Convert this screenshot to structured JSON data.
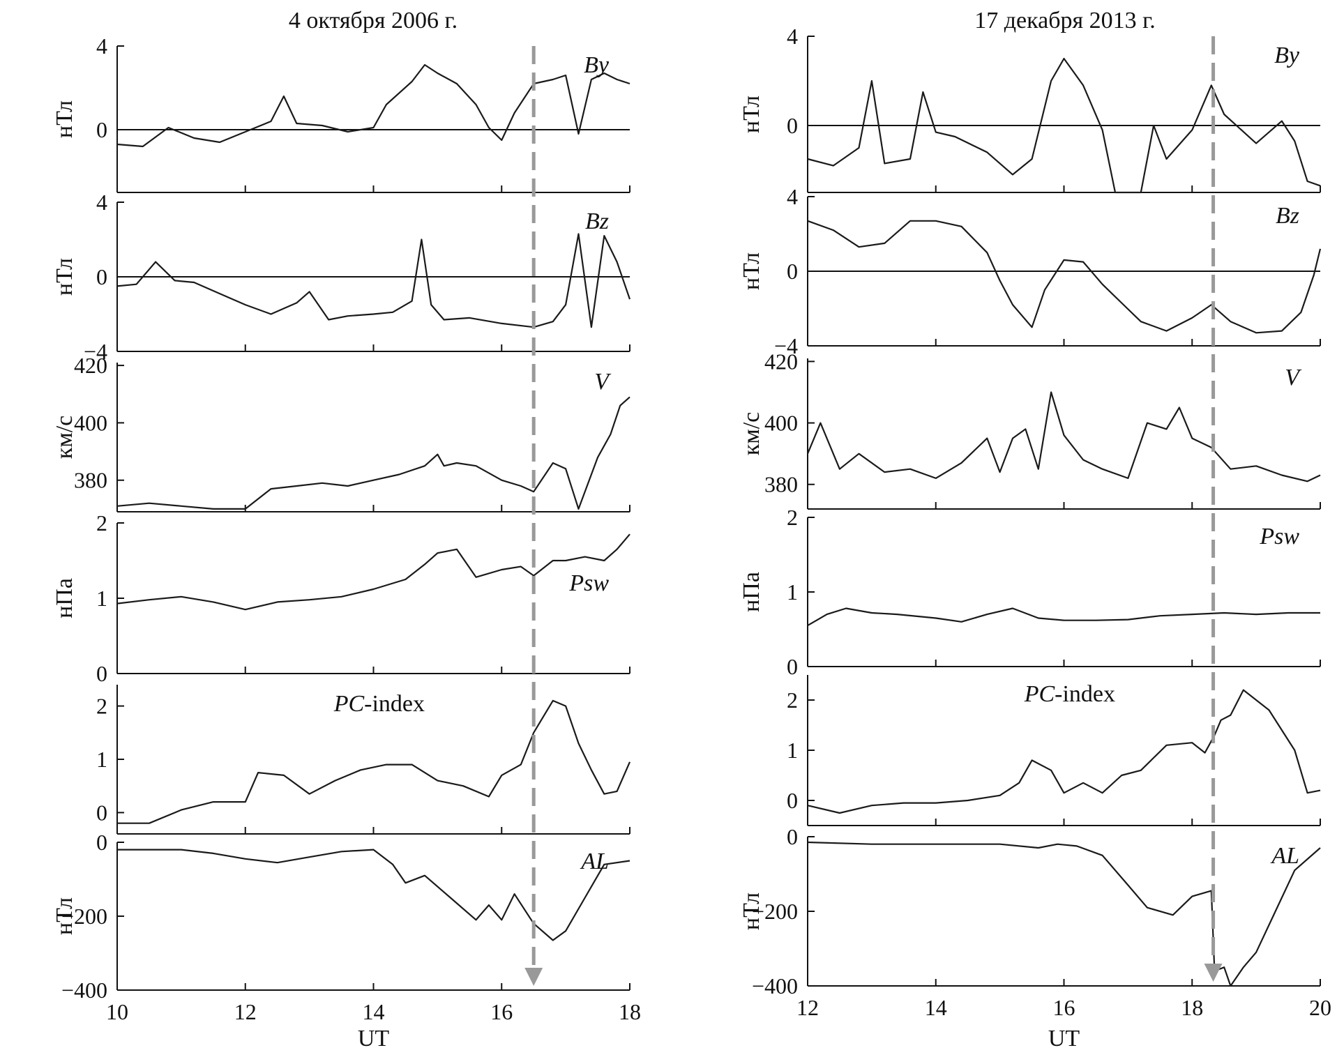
{
  "chart_data": [
    {
      "type": "line",
      "title": "4 октября 2006 г.",
      "xlabel": "UT",
      "xlim": [
        10,
        18
      ],
      "xticks": [
        10,
        12,
        14,
        16,
        18
      ],
      "xtick_labels": [
        "10",
        "12",
        "14",
        "16",
        "18"
      ],
      "event_time": 16.5,
      "event_color": "#999999",
      "panels": [
        {
          "name": "By",
          "label_main": "By",
          "label_suffix": "",
          "ylabel": "нТл",
          "ylim": [
            -3,
            4
          ],
          "yticks": [
            0,
            4
          ],
          "ytick_labels": [
            "0",
            "4"
          ],
          "zero_line": true,
          "label_pos": "top-right",
          "x": [
            10,
            10.4,
            10.8,
            11.2,
            11.6,
            12,
            12.4,
            12.6,
            12.8,
            13.2,
            13.6,
            14,
            14.2,
            14.6,
            14.8,
            15,
            15.3,
            15.6,
            15.8,
            16,
            16.2,
            16.5,
            16.8,
            17,
            17.1,
            17.2,
            17.4,
            17.6,
            17.8,
            18
          ],
          "y": [
            -0.7,
            -0.8,
            0.1,
            -0.4,
            -0.6,
            -0.1,
            0.4,
            1.6,
            0.3,
            0.2,
            -0.1,
            0.1,
            1.2,
            2.3,
            3.1,
            2.7,
            2.2,
            1.2,
            0.1,
            -0.5,
            0.8,
            2.2,
            2.4,
            2.6,
            1.2,
            -0.2,
            2.4,
            2.7,
            2.4,
            2.2
          ]
        },
        {
          "name": "Bz",
          "label_main": "Bz",
          "label_suffix": "",
          "ylabel": "нТл",
          "ylim": [
            -4,
            4
          ],
          "yticks": [
            -4,
            0,
            4
          ],
          "ytick_labels": [
            "−4",
            "0",
            "4"
          ],
          "zero_line": true,
          "label_pos": "top-right",
          "x": [
            10,
            10.3,
            10.6,
            10.9,
            11.2,
            11.6,
            12,
            12.4,
            12.8,
            13,
            13.3,
            13.6,
            14,
            14.3,
            14.6,
            14.75,
            14.9,
            15.1,
            15.5,
            16,
            16.5,
            16.8,
            17,
            17.2,
            17.4,
            17.6,
            17.8,
            18
          ],
          "y": [
            -0.5,
            -0.4,
            0.8,
            -0.2,
            -0.3,
            -0.9,
            -1.5,
            -2,
            -1.4,
            -0.8,
            -2.3,
            -2.1,
            -2,
            -1.9,
            -1.3,
            2,
            -1.5,
            -2.3,
            -2.2,
            -2.5,
            -2.7,
            -2.4,
            -1.5,
            2.3,
            -2.7,
            2.2,
            0.8,
            -1.2
          ]
        },
        {
          "name": "V",
          "label_main": "V",
          "label_suffix": "",
          "ylabel": "км/с",
          "ylim": [
            369,
            421
          ],
          "yticks": [
            380,
            400,
            420
          ],
          "ytick_labels": [
            "380",
            "400",
            "420"
          ],
          "zero_line": false,
          "label_pos": "top-right",
          "x": [
            10,
            10.5,
            11,
            11.5,
            12,
            12.4,
            12.8,
            13.2,
            13.6,
            14,
            14.4,
            14.8,
            15,
            15.1,
            15.3,
            15.6,
            16,
            16.3,
            16.5,
            16.8,
            17,
            17.2,
            17.5,
            17.7,
            17.85,
            18
          ],
          "y": [
            371,
            372,
            371,
            370,
            370,
            377,
            378,
            379,
            378,
            380,
            382,
            385,
            389,
            385,
            386,
            385,
            380,
            378,
            376,
            386,
            384,
            370,
            388,
            396,
            406,
            409
          ]
        },
        {
          "name": "Psw",
          "label_main": "Psw",
          "label_suffix": "",
          "ylabel": "нПа",
          "ylim": [
            0,
            2
          ],
          "yticks": [
            0,
            1,
            2
          ],
          "ytick_labels": [
            "0",
            "1",
            "2"
          ],
          "zero_line": false,
          "label_pos": "middle-right",
          "x": [
            10,
            10.5,
            11,
            11.5,
            12,
            12.5,
            13,
            13.5,
            14,
            14.5,
            14.8,
            15,
            15.3,
            15.6,
            16,
            16.3,
            16.5,
            16.8,
            17,
            17.3,
            17.6,
            17.8,
            18
          ],
          "y": [
            0.93,
            0.98,
            1.02,
            0.95,
            0.85,
            0.95,
            0.98,
            1.02,
            1.12,
            1.25,
            1.45,
            1.6,
            1.65,
            1.28,
            1.38,
            1.42,
            1.3,
            1.5,
            1.5,
            1.55,
            1.5,
            1.65,
            1.85
          ]
        },
        {
          "name": "PC-index",
          "label_main": "PC",
          "label_suffix": "-index",
          "ylabel": "",
          "ylim": [
            -0.4,
            2.4
          ],
          "yticks": [
            0,
            1,
            2
          ],
          "ytick_labels": [
            "0",
            "1",
            "2"
          ],
          "zero_line": false,
          "label_pos": "upper-center",
          "x": [
            10,
            10.5,
            11,
            11.5,
            12,
            12.2,
            12.6,
            13,
            13.4,
            13.8,
            14.2,
            14.6,
            15,
            15.4,
            15.8,
            16,
            16.3,
            16.5,
            16.8,
            17,
            17.2,
            17.4,
            17.6,
            17.8,
            18
          ],
          "y": [
            -0.2,
            -0.2,
            0.05,
            0.2,
            0.2,
            0.75,
            0.7,
            0.35,
            0.6,
            0.8,
            0.9,
            0.9,
            0.6,
            0.5,
            0.3,
            0.7,
            0.9,
            1.5,
            2.1,
            2,
            1.3,
            0.8,
            0.35,
            0.4,
            0.95
          ]
        },
        {
          "name": "AL",
          "label_main": "AL",
          "label_suffix": "",
          "ylabel": "нТл",
          "ylim": [
            -400,
            0
          ],
          "yticks": [
            -400,
            -200,
            0
          ],
          "ytick_labels": [
            "−400",
            "−200",
            "0"
          ],
          "zero_line": false,
          "label_pos": "top-right",
          "x": [
            10,
            11,
            11.5,
            12,
            12.5,
            13,
            13.5,
            14,
            14.3,
            14.5,
            14.8,
            15.2,
            15.6,
            15.8,
            16,
            16.2,
            16.5,
            16.8,
            17,
            17.3,
            17.6,
            18
          ],
          "y": [
            -20,
            -20,
            -30,
            -45,
            -55,
            -40,
            -25,
            -20,
            -60,
            -110,
            -90,
            -150,
            -210,
            -170,
            -210,
            -140,
            -220,
            -265,
            -240,
            -150,
            -60,
            -50
          ]
        }
      ]
    },
    {
      "type": "line",
      "title": "17 декабря 2013 г.",
      "xlabel": "UT",
      "xlim": [
        12,
        20
      ],
      "xticks": [
        12,
        14,
        16,
        18,
        20
      ],
      "xtick_labels": [
        "12",
        "14",
        "16",
        "18",
        "20"
      ],
      "event_time": 18.33,
      "event_color": "#999999",
      "panels": [
        {
          "name": "By",
          "label_main": "By",
          "label_suffix": "",
          "ylabel": "нТл",
          "ylim": [
            -3,
            4
          ],
          "yticks": [
            0,
            4
          ],
          "ytick_labels": [
            "0",
            "4"
          ],
          "zero_line": true,
          "label_pos": "top-right",
          "x": [
            12,
            12.4,
            12.8,
            13,
            13.2,
            13.6,
            13.8,
            14,
            14.3,
            14.8,
            15.2,
            15.5,
            15.8,
            16,
            16.3,
            16.6,
            16.8,
            17.2,
            17.4,
            17.6,
            18,
            18.3,
            18.5,
            19,
            19.4,
            19.6,
            19.8,
            20
          ],
          "y": [
            -1.5,
            -1.8,
            -1,
            2,
            -1.7,
            -1.5,
            1.5,
            -0.3,
            -0.5,
            -1.2,
            -2.2,
            -1.5,
            2,
            3,
            1.8,
            -0.2,
            -3,
            -3,
            0,
            -1.5,
            -0.2,
            1.8,
            0.5,
            -0.8,
            0.2,
            -0.7,
            -2.5,
            -2.7
          ]
        },
        {
          "name": "Bz",
          "label_main": "Bz",
          "label_suffix": "",
          "ylabel": "нТл",
          "ylim": [
            -4,
            4
          ],
          "yticks": [
            -4,
            0,
            4
          ],
          "ytick_labels": [
            "−4",
            "0",
            "4"
          ],
          "zero_line": true,
          "label_pos": "top-right",
          "x": [
            12,
            12.4,
            12.8,
            13.2,
            13.6,
            14,
            14.4,
            14.8,
            15,
            15.2,
            15.5,
            15.7,
            16,
            16.3,
            16.6,
            16.9,
            17.2,
            17.6,
            18,
            18.3,
            18.6,
            19,
            19.4,
            19.7,
            19.9,
            20
          ],
          "y": [
            2.7,
            2.2,
            1.3,
            1.5,
            2.7,
            2.7,
            2.4,
            1,
            -0.5,
            -1.8,
            -3,
            -1,
            0.6,
            0.5,
            -0.7,
            -1.7,
            -2.7,
            -3.2,
            -2.5,
            -1.8,
            -2.7,
            -3.3,
            -3.2,
            -2.2,
            -0.2,
            1.2
          ]
        },
        {
          "name": "V",
          "label_main": "V",
          "label_suffix": "",
          "ylabel": "км/с",
          "ylim": [
            372,
            421
          ],
          "yticks": [
            380,
            400,
            420
          ],
          "ytick_labels": [
            "380",
            "400",
            "420"
          ],
          "zero_line": false,
          "label_pos": "top-right",
          "x": [
            12,
            12.2,
            12.5,
            12.8,
            13.2,
            13.6,
            14,
            14.4,
            14.8,
            15,
            15.2,
            15.4,
            15.6,
            15.8,
            16,
            16.3,
            16.6,
            17,
            17.3,
            17.6,
            17.8,
            18,
            18.3,
            18.6,
            19,
            19.4,
            19.8,
            20
          ],
          "y": [
            390,
            400,
            385,
            390,
            384,
            385,
            382,
            387,
            395,
            384,
            395,
            398,
            385,
            410,
            396,
            388,
            385,
            382,
            400,
            398,
            405,
            395,
            392,
            385,
            386,
            383,
            381,
            383
          ]
        },
        {
          "name": "Psw",
          "label_main": "Psw",
          "label_suffix": "",
          "ylabel": "нПа",
          "ylim": [
            0,
            2
          ],
          "yticks": [
            0,
            1,
            2
          ],
          "ytick_labels": [
            "0",
            "1",
            "2"
          ],
          "zero_line": false,
          "label_pos": "top-right",
          "x": [
            12,
            12.3,
            12.6,
            13,
            13.4,
            14,
            14.4,
            14.8,
            15.2,
            15.6,
            16,
            16.5,
            17,
            17.5,
            18,
            18.5,
            19,
            19.5,
            20
          ],
          "y": [
            0.55,
            0.7,
            0.78,
            0.72,
            0.7,
            0.65,
            0.6,
            0.7,
            0.78,
            0.65,
            0.62,
            0.62,
            0.63,
            0.68,
            0.7,
            0.72,
            0.7,
            0.72,
            0.72
          ]
        },
        {
          "name": "PC-index",
          "label_main": "PC",
          "label_suffix": "-index",
          "ylabel": "",
          "ylim": [
            -0.5,
            2.5
          ],
          "yticks": [
            0,
            1,
            2
          ],
          "ytick_labels": [
            "0",
            "1",
            "2"
          ],
          "zero_line": false,
          "label_pos": "upper-center",
          "x": [
            12,
            12.5,
            13,
            13.5,
            14,
            14.5,
            15,
            15.3,
            15.5,
            15.8,
            16,
            16.3,
            16.6,
            16.9,
            17.2,
            17.6,
            18,
            18.2,
            18.35,
            18.45,
            18.6,
            18.8,
            19.2,
            19.6,
            19.8,
            20
          ],
          "y": [
            -0.1,
            -0.25,
            -0.1,
            -0.05,
            -0.05,
            0,
            0.1,
            0.35,
            0.8,
            0.6,
            0.15,
            0.35,
            0.15,
            0.5,
            0.6,
            1.1,
            1.15,
            0.95,
            1.3,
            1.6,
            1.7,
            2.2,
            1.8,
            1,
            0.15,
            0.2
          ]
        },
        {
          "name": "AL",
          "label_main": "AL",
          "label_suffix": "",
          "ylabel": "нТл",
          "ylim": [
            -400,
            0
          ],
          "yticks": [
            -400,
            -200,
            0
          ],
          "ytick_labels": [
            "−400",
            "−200",
            "0"
          ],
          "zero_line": false,
          "label_pos": "top-right",
          "x": [
            12,
            13,
            14,
            15,
            15.6,
            15.9,
            16.2,
            16.6,
            17,
            17.3,
            17.7,
            18,
            18.3,
            18.35,
            18.5,
            18.6,
            18.8,
            19,
            19.3,
            19.6,
            20
          ],
          "y": [
            -15,
            -20,
            -20,
            -20,
            -30,
            -20,
            -25,
            -50,
            -130,
            -190,
            -210,
            -160,
            -145,
            -360,
            -350,
            -400,
            -350,
            -310,
            -200,
            -90,
            -30
          ]
        }
      ]
    }
  ]
}
